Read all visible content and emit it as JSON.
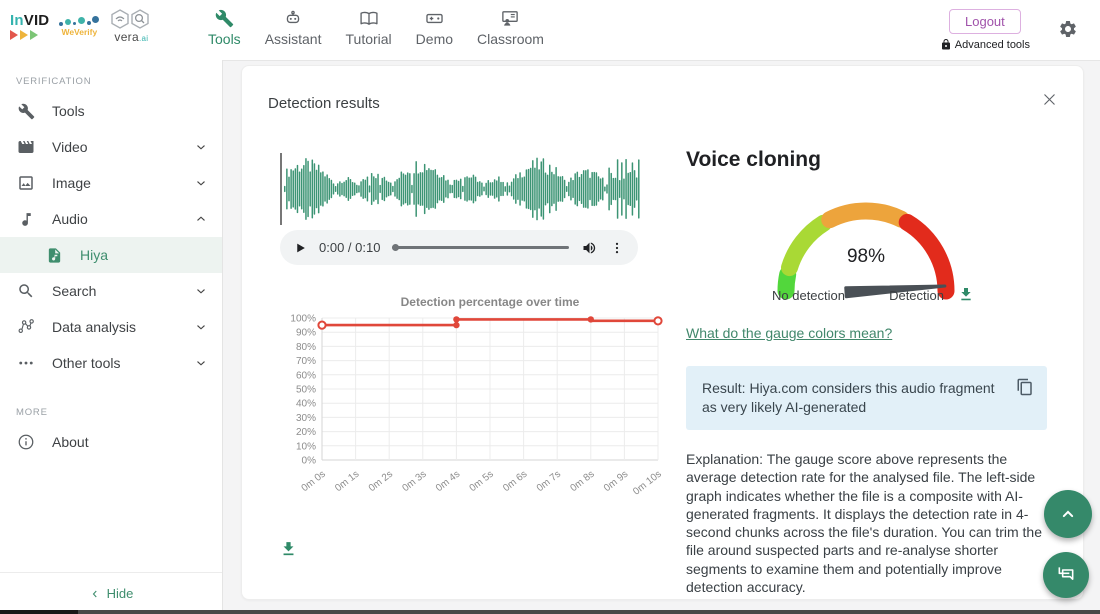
{
  "header": {
    "logo": {
      "invid_in": "In",
      "invid_vid": "VID",
      "weverify": "WeVerify",
      "vera": "vera",
      "vera_ai": ".ai"
    },
    "nav": [
      {
        "label": "Tools"
      },
      {
        "label": "Assistant"
      },
      {
        "label": "Tutorial"
      },
      {
        "label": "Demo"
      },
      {
        "label": "Classroom"
      }
    ],
    "logout_label": "Logout",
    "advanced_tools_label": "Advanced tools"
  },
  "sidebar": {
    "section_verification": "VERIFICATION",
    "items": [
      {
        "label": "Tools"
      },
      {
        "label": "Video"
      },
      {
        "label": "Image"
      },
      {
        "label": "Audio"
      },
      {
        "label": "Hiya"
      },
      {
        "label": "Search"
      },
      {
        "label": "Data analysis"
      },
      {
        "label": "Other tools"
      }
    ],
    "section_more": "MORE",
    "about_label": "About",
    "hide_label": "Hide"
  },
  "dialog": {
    "title": "Detection results",
    "player": {
      "time_label": "0:00 / 0:10"
    },
    "gauge": {
      "title": "Voice cloning",
      "value": 98,
      "value_label": "98%",
      "left_label": "No detection",
      "right_label": "Detection",
      "segments": [
        {
          "from": 180,
          "to": 168,
          "color": "#52d73c"
        },
        {
          "from": 163,
          "to": 122,
          "color": "#a9d935"
        },
        {
          "from": 117,
          "to": 64,
          "color": "#eda43c"
        },
        {
          "from": 59,
          "to": 0,
          "color": "#e22b1c"
        }
      ],
      "needle_color": "#4a5056"
    },
    "colors_link_label": "What do the gauge colors mean?",
    "result_text": "Result: Hiya.com considers this audio fragment as very likely AI-generated",
    "explanation_text": "Explanation: The gauge score above represents the average detection rate for the analysed file. The left-side graph indicates whether the file is a composite with AI-generated fragments. It displays the detection rate in 4-second chunks across the file's duration. You can trim the file around suspected parts and re-analyse shorter segments to examine them and potentially improve detection accuracy."
  },
  "chart_data": {
    "type": "line",
    "title": "Detection percentage over time",
    "xlabel": "",
    "ylabel": "",
    "x_ticks": [
      "0m 0s",
      "0m 1s",
      "0m 2s",
      "0m 3s",
      "0m 4s",
      "0m 5s",
      "0m 6s",
      "0m 7s",
      "0m 8s",
      "0m 9s",
      "0m 10s"
    ],
    "x_range": [
      0,
      10
    ],
    "ylim": [
      0,
      100
    ],
    "y_tick_step": 10,
    "y_tick_suffix": "%",
    "grid": true,
    "legend": "none",
    "line_color": "#e0473a",
    "series": [
      {
        "name": "Detection percentage",
        "points": [
          [
            0,
            95
          ],
          [
            4,
            95
          ],
          [
            4,
            99
          ],
          [
            8,
            99
          ],
          [
            8,
            98
          ],
          [
            10,
            98
          ]
        ]
      }
    ],
    "markers": [
      {
        "x": 0,
        "y": 95,
        "style": "open"
      },
      {
        "x": 4,
        "y": 95,
        "style": "filled"
      },
      {
        "x": 4,
        "y": 99,
        "style": "filled"
      },
      {
        "x": 8,
        "y": 99,
        "style": "filled"
      },
      {
        "x": 10,
        "y": 98,
        "style": "open"
      }
    ]
  },
  "colors": {
    "accent_green": "#2f8a68",
    "waveform_green": "#3c9474",
    "chart_red": "#e0473a",
    "fab_green": "#35896a",
    "result_bg": "#e2f0f8",
    "logout_purple": "#a052aa"
  }
}
